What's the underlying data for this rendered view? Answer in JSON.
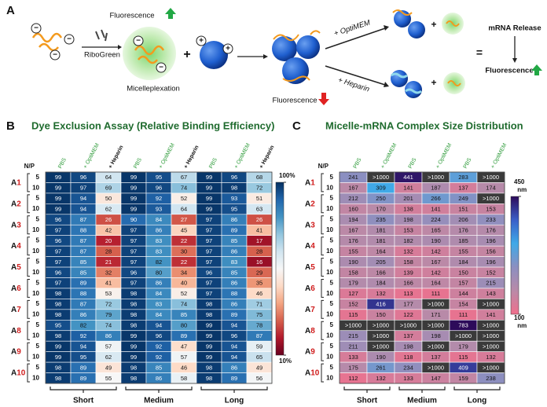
{
  "panel_a": {
    "label": "A",
    "fluorescence_1": "Fluorescence",
    "riboGreen": "RiboGreen",
    "micelleplexation": "Micelleplexation",
    "fluorescence_2": "Fluorescence",
    "optimem": "+ OptiMEM",
    "heparin": "+ Heparin",
    "equals": "=",
    "release": "mRNA Release",
    "fluorescence_3": "Fluorescence"
  },
  "panel_b": {
    "label": "B",
    "title": "Dye Exclusion Assay (Relative Binding Efficiency)",
    "np_label": "N/P",
    "columns": [
      "PBS",
      "+ OptiMEM",
      "+ Heparin",
      "PBS",
      "+ OptiMEM",
      "+ Heparin",
      "PBS",
      "+ OptiMEM",
      "+ Heparin"
    ],
    "groups": [
      "Short",
      "Medium",
      "Long"
    ],
    "row_labels": [
      "A1",
      "A2",
      "A3",
      "A4",
      "A5",
      "A6",
      "A7",
      "A8",
      "A9",
      "A10"
    ],
    "rows": [
      {
        "np": 5,
        "values": [
          99,
          96,
          64,
          99,
          95,
          67,
          99,
          96,
          68
        ]
      },
      {
        "np": 10,
        "values": [
          99,
          97,
          69,
          99,
          96,
          74,
          99,
          98,
          72
        ]
      },
      {
        "np": 5,
        "values": [
          99,
          94,
          50,
          99,
          92,
          52,
          99,
          93,
          51
        ]
      },
      {
        "np": 10,
        "values": [
          99,
          94,
          62,
          99,
          93,
          64,
          99,
          95,
          63
        ]
      },
      {
        "np": 5,
        "values": [
          96,
          87,
          26,
          90,
          84,
          27,
          97,
          86,
          26
        ]
      },
      {
        "np": 10,
        "values": [
          97,
          88,
          42,
          97,
          86,
          45,
          97,
          89,
          41
        ]
      },
      {
        "np": 5,
        "values": [
          96,
          87,
          20,
          97,
          83,
          22,
          97,
          85,
          17
        ]
      },
      {
        "np": 10,
        "values": [
          97,
          87,
          28,
          97,
          83,
          30,
          97,
          86,
          28
        ]
      },
      {
        "np": 5,
        "values": [
          97,
          85,
          21,
          97,
          82,
          22,
          97,
          83,
          16
        ]
      },
      {
        "np": 10,
        "values": [
          96,
          85,
          32,
          96,
          80,
          34,
          96,
          85,
          29
        ]
      },
      {
        "np": 5,
        "values": [
          97,
          89,
          41,
          97,
          86,
          40,
          97,
          86,
          35
        ]
      },
      {
        "np": 10,
        "values": [
          98,
          88,
          53,
          98,
          84,
          52,
          97,
          88,
          46
        ]
      },
      {
        "np": 5,
        "values": [
          98,
          87,
          72,
          98,
          83,
          74,
          98,
          86,
          71
        ]
      },
      {
        "np": 10,
        "values": [
          98,
          86,
          79,
          98,
          84,
          85,
          98,
          89,
          75
        ]
      },
      {
        "np": 5,
        "values": [
          95,
          82,
          74,
          98,
          94,
          80,
          99,
          94,
          78
        ]
      },
      {
        "np": 10,
        "values": [
          98,
          92,
          86,
          99,
          96,
          89,
          99,
          96,
          87
        ]
      },
      {
        "np": 5,
        "values": [
          99,
          94,
          57,
          99,
          92,
          47,
          99,
          94,
          59
        ]
      },
      {
        "np": 10,
        "values": [
          99,
          95,
          62,
          99,
          92,
          57,
          99,
          94,
          65
        ]
      },
      {
        "np": 5,
        "values": [
          98,
          89,
          49,
          98,
          85,
          46,
          98,
          86,
          49
        ]
      },
      {
        "np": 10,
        "values": [
          98,
          89,
          55,
          98,
          86,
          58,
          98,
          89,
          56
        ]
      }
    ],
    "colorbar": {
      "ticks": [
        {
          "value": 100,
          "label": "100%"
        },
        {
          "value": 10,
          "label": "10%"
        }
      ],
      "colors": [
        "#67001f",
        "#b2182b",
        "#d6604d",
        "#f4a582",
        "#fddbc7",
        "#f7f7f7",
        "#d1e5f0",
        "#92c5de",
        "#4393c3",
        "#2166ac",
        "#053061"
      ]
    }
  },
  "panel_c": {
    "label": "C",
    "title": "Micelle-mRNA Complex Size Distribution",
    "np_label": "N/P",
    "columns": [
      "PBS",
      "+ OptiMEM",
      "PBS",
      "+ OptiMEM",
      "PBS",
      "+ OptiMEM"
    ],
    "groups": [
      "Short",
      "Medium",
      "Long"
    ],
    "row_labels": [
      "A1",
      "A2",
      "A3",
      "A4",
      "A5",
      "A6",
      "A7",
      "A8",
      "A9",
      "A10"
    ],
    "rows": [
      {
        "np": 5,
        "values": [
          241,
          ">1000",
          441,
          ">1000",
          283,
          ">1000"
        ]
      },
      {
        "np": 10,
        "values": [
          167,
          309,
          141,
          187,
          137,
          174
        ]
      },
      {
        "np": 5,
        "values": [
          212,
          250,
          201,
          266,
          249,
          ">1000"
        ]
      },
      {
        "np": 10,
        "values": [
          160,
          170,
          138,
          141,
          151,
          153
        ]
      },
      {
        "np": 5,
        "values": [
          194,
          235,
          198,
          224,
          206,
          233
        ]
      },
      {
        "np": 10,
        "values": [
          167,
          181,
          153,
          165,
          176,
          176
        ]
      },
      {
        "np": 5,
        "values": [
          176,
          181,
          182,
          190,
          185,
          196
        ]
      },
      {
        "np": 10,
        "values": [
          155,
          164,
          132,
          142,
          155,
          156
        ]
      },
      {
        "np": 5,
        "values": [
          190,
          205,
          158,
          167,
          184,
          196
        ]
      },
      {
        "np": 10,
        "values": [
          158,
          166,
          139,
          142,
          150,
          152
        ]
      },
      {
        "np": 5,
        "values": [
          179,
          184,
          166,
          164,
          157,
          215
        ]
      },
      {
        "np": 10,
        "values": [
          127,
          132,
          113,
          111,
          144,
          143
        ]
      },
      {
        "np": 5,
        "values": [
          152,
          416,
          177,
          ">1000",
          154,
          ">1000"
        ]
      },
      {
        "np": 10,
        "values": [
          115,
          150,
          122,
          171,
          111,
          141
        ]
      },
      {
        "np": 5,
        "values": [
          ">1000",
          ">1000",
          ">1000",
          ">1000",
          783,
          ">1000"
        ]
      },
      {
        "np": 10,
        "values": [
          215,
          ">1000",
          137,
          198,
          ">1000",
          ">1000"
        ]
      },
      {
        "np": 5,
        "values": [
          211,
          ">1000",
          198,
          ">1000",
          179,
          ">1000"
        ]
      },
      {
        "np": 10,
        "values": [
          133,
          190,
          118,
          137,
          115,
          132
        ]
      },
      {
        "np": 5,
        "values": [
          175,
          261,
          234,
          ">1000",
          409,
          ">1000"
        ]
      },
      {
        "np": 10,
        "values": [
          112,
          132,
          133,
          147,
          159,
          238
        ]
      }
    ],
    "colorbar": {
      "ticks": [
        {
          "value": 450,
          "label": "450 nm"
        },
        {
          "value": 100,
          "label": "100 nm"
        }
      ],
      "colors": [
        "#f06f8c",
        "#b98aa8",
        "#8c8fc0",
        "#3fa9e8",
        "#3a5fc8",
        "#2d0b5a"
      ],
      "overflow_color": "#3a3a3a"
    }
  }
}
